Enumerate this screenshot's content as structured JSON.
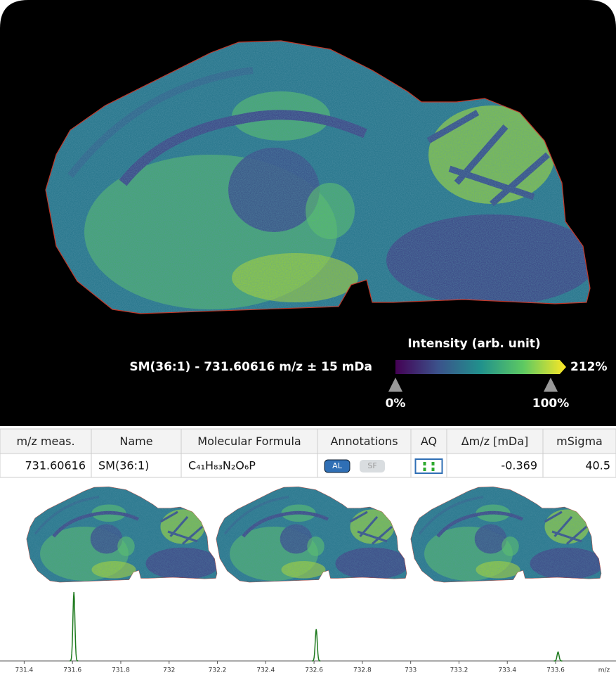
{
  "image": {
    "label": "SM(36:1) - 731.60616 m/z ± 15 mDa",
    "colorbar": {
      "title": "Intensity (arb. unit)",
      "min_label": "0%",
      "mid_label": "100%",
      "max_label": "212%"
    }
  },
  "table": {
    "columns": [
      "m/z meas.",
      "Name",
      "Molecular Formula",
      "Annotations",
      "AQ",
      "Δm/z [mDa]",
      "mSigma"
    ],
    "rows": [
      [
        "731.60616",
        "SM(36:1)",
        "C₄₁H₈₃N₂O₆P",
        [
          "AL",
          "SF"
        ],
        "",
        "-0.369",
        "40.5"
      ]
    ]
  },
  "chart_data": {
    "type": "spectrum",
    "x_label": "m/z",
    "x": [
      731.606,
      732.609,
      733.61
    ],
    "values": [
      100,
      46,
      13
    ],
    "color": "#1e7a1e",
    "xlim": [
      731.3,
      733.85
    ],
    "xticks": [
      731.4,
      731.6,
      731.8,
      732,
      732.2,
      732.4,
      732.6,
      732.8,
      733,
      733.2,
      733.4,
      733.6
    ]
  }
}
